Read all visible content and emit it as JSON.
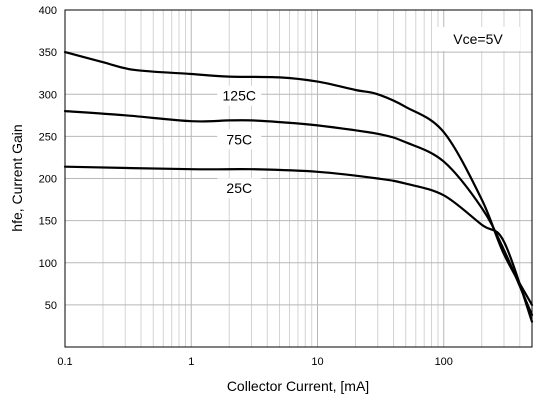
{
  "chart_data": {
    "type": "line",
    "xlabel": "Collector Current, [mA]",
    "ylabel": "hfe, Current Gain",
    "xscale": "log",
    "xlim": [
      0.1,
      500
    ],
    "ylim": [
      0,
      400
    ],
    "xticks": [
      0.1,
      1,
      10,
      100
    ],
    "xtick_labels": [
      "0.1",
      "1",
      "10",
      "100"
    ],
    "yticks": [
      50,
      100,
      150,
      200,
      250,
      300,
      350,
      400
    ],
    "ytick_labels": [
      "50",
      "100",
      "150",
      "200",
      "250",
      "300",
      "350",
      "400"
    ],
    "grid": true,
    "annotation": "Vce=5V",
    "series": [
      {
        "name": "125C",
        "x": [
          0.1,
          0.2,
          0.35,
          1,
          2,
          5,
          10,
          20,
          30,
          50,
          100,
          200,
          300,
          500
        ],
        "y": [
          350,
          338,
          329,
          324,
          321,
          320,
          315,
          305,
          300,
          285,
          255,
          175,
          110,
          50
        ]
      },
      {
        "name": "75C",
        "x": [
          0.1,
          0.3,
          1,
          2,
          3,
          5,
          10,
          30,
          50,
          100,
          200,
          300,
          500
        ],
        "y": [
          280,
          275,
          268,
          269,
          269,
          267,
          263,
          253,
          243,
          220,
          165,
          115,
          38
        ]
      },
      {
        "name": "25C",
        "x": [
          0.1,
          1,
          3,
          10,
          30,
          50,
          100,
          200,
          300,
          500
        ],
        "y": [
          214,
          211,
          211,
          208,
          200,
          194,
          180,
          145,
          125,
          30
        ]
      }
    ],
    "labels": [
      {
        "text": "125C",
        "series": "125C"
      },
      {
        "text": "75C",
        "series": "75C"
      },
      {
        "text": "25C",
        "series": "25C"
      }
    ]
  }
}
